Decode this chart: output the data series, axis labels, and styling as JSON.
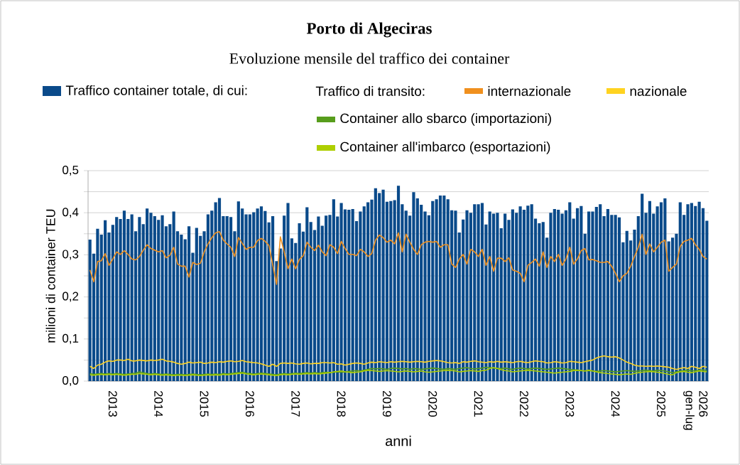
{
  "chart_data": {
    "type": "bar",
    "title": "Porto di Algeciras",
    "subtitle": "Evoluzione mensile del traffico dei container",
    "xlabel": "anni",
    "ylabel": "milioni di container TEU",
    "legend_title": "Traffico di transito:",
    "categories": [
      null,
      null,
      null,
      null,
      null,
      null,
      "2013",
      null,
      null,
      null,
      null,
      null,
      null,
      null,
      null,
      null,
      null,
      null,
      "2014",
      null,
      null,
      null,
      null,
      null,
      null,
      null,
      null,
      null,
      null,
      null,
      "2015",
      null,
      null,
      null,
      null,
      null,
      null,
      null,
      null,
      null,
      null,
      null,
      "2016",
      null,
      null,
      null,
      null,
      null,
      null,
      null,
      null,
      null,
      null,
      null,
      "2017",
      null,
      null,
      null,
      null,
      null,
      null,
      null,
      null,
      null,
      null,
      null,
      "2018",
      null,
      null,
      null,
      null,
      null,
      null,
      null,
      null,
      null,
      null,
      null,
      "2019",
      null,
      null,
      null,
      null,
      null,
      null,
      null,
      null,
      null,
      null,
      null,
      "2020",
      null,
      null,
      null,
      null,
      null,
      null,
      null,
      null,
      null,
      null,
      null,
      "2021",
      null,
      null,
      null,
      null,
      null,
      null,
      null,
      null,
      null,
      null,
      null,
      "2022",
      null,
      null,
      null,
      null,
      null,
      null,
      null,
      null,
      null,
      null,
      null,
      "2023",
      null,
      null,
      null,
      null,
      null,
      null,
      null,
      null,
      null,
      null,
      null,
      "2024",
      null,
      null,
      null,
      null,
      null,
      null,
      null,
      null,
      null,
      null,
      null,
      "2025",
      null,
      null,
      null,
      null,
      null,
      null,
      null,
      null,
      "2026 gen-lug",
      null,
      null,
      null
    ],
    "series": [
      {
        "name": "Traffico container totale, di cui:",
        "color": "#0a4a8a",
        "values": [
          0.336,
          0.303,
          0.362,
          0.348,
          0.382,
          0.353,
          0.371,
          0.39,
          0.385,
          0.405,
          0.385,
          0.396,
          0.356,
          0.39,
          0.373,
          0.41,
          0.4,
          0.392,
          0.383,
          0.394,
          0.368,
          0.373,
          0.403,
          0.356,
          0.348,
          0.337,
          0.368,
          0.305,
          0.364,
          0.345,
          0.356,
          0.396,
          0.405,
          0.425,
          0.435,
          0.392,
          0.392,
          0.39,
          0.356,
          0.427,
          0.41,
          0.396,
          0.396,
          0.401,
          0.41,
          0.415,
          0.404,
          0.377,
          0.392,
          0.285,
          0.315,
          0.393,
          0.423,
          0.339,
          0.328,
          0.375,
          0.355,
          0.413,
          0.378,
          0.359,
          0.391,
          0.369,
          0.393,
          0.395,
          0.432,
          0.391,
          0.423,
          0.408,
          0.407,
          0.409,
          0.38,
          0.403,
          0.415,
          0.425,
          0.431,
          0.458,
          0.447,
          0.455,
          0.426,
          0.428,
          0.43,
          0.464,
          0.42,
          0.405,
          0.393,
          0.449,
          0.434,
          0.419,
          0.403,
          0.394,
          0.428,
          0.432,
          0.441,
          0.441,
          0.432,
          0.406,
          0.405,
          0.353,
          0.384,
          0.406,
          0.4,
          0.42,
          0.42,
          0.423,
          0.372,
          0.403,
          0.398,
          0.4,
          0.363,
          0.398,
          0.383,
          0.408,
          0.4,
          0.415,
          0.407,
          0.417,
          0.42,
          0.386,
          0.375,
          0.378,
          0.341,
          0.4,
          0.409,
          0.407,
          0.398,
          0.406,
          0.425,
          0.386,
          0.411,
          0.416,
          0.35,
          0.403,
          0.403,
          0.414,
          0.42,
          0.392,
          0.409,
          0.395,
          0.395,
          0.389,
          0.33,
          0.357,
          0.334,
          0.36,
          0.392,
          0.445,
          0.4,
          0.428,
          0.398,
          0.415,
          0.425,
          0.434,
          0.332,
          0.341,
          0.35,
          0.425,
          0.395,
          0.42,
          0.423,
          0.416,
          0.426,
          0.411,
          0.381
        ]
      },
      {
        "name": "internazionale",
        "type": "line",
        "color": "#f0901e",
        "values": [
          0.264,
          0.236,
          0.284,
          0.286,
          0.303,
          0.275,
          0.29,
          0.307,
          0.301,
          0.31,
          0.301,
          0.29,
          0.288,
          0.296,
          0.311,
          0.324,
          0.315,
          0.311,
          0.307,
          0.31,
          0.293,
          0.299,
          0.318,
          0.278,
          0.273,
          0.273,
          0.247,
          0.282,
          0.277,
          0.28,
          0.307,
          0.326,
          0.341,
          0.352,
          0.355,
          0.335,
          0.326,
          0.318,
          0.296,
          0.341,
          0.327,
          0.313,
          0.318,
          0.318,
          0.334,
          0.339,
          0.332,
          0.322,
          0.276,
          0.23,
          0.343,
          0.307,
          0.267,
          0.29,
          0.267,
          0.289,
          0.298,
          0.33,
          0.318,
          0.31,
          0.323,
          0.307,
          0.298,
          0.324,
          0.318,
          0.303,
          0.332,
          0.315,
          0.301,
          0.301,
          0.298,
          0.313,
          0.307,
          0.296,
          0.303,
          0.335,
          0.347,
          0.341,
          0.33,
          0.335,
          0.326,
          0.352,
          0.307,
          0.349,
          0.33,
          0.313,
          0.301,
          0.324,
          0.33,
          0.332,
          0.33,
          0.332,
          0.318,
          0.324,
          0.324,
          0.278,
          0.27,
          0.29,
          0.301,
          0.278,
          0.313,
          0.307,
          0.296,
          0.313,
          0.275,
          0.296,
          0.261,
          0.292,
          0.292,
          0.284,
          0.293,
          0.264,
          0.261,
          0.256,
          0.236,
          0.275,
          0.282,
          0.29,
          0.273,
          0.307,
          0.27,
          0.296,
          0.284,
          0.301,
          0.275,
          0.29,
          0.318,
          0.278,
          0.29,
          0.31,
          0.315,
          0.288,
          0.289,
          0.286,
          0.282,
          0.282,
          0.284,
          0.273,
          0.256,
          0.236,
          0.25,
          0.256,
          0.273,
          0.296,
          0.318,
          0.349,
          0.301,
          0.326,
          0.307,
          0.318,
          0.33,
          0.335,
          0.261,
          0.27,
          0.278,
          0.32,
          0.332,
          0.335,
          0.339,
          0.324,
          0.313,
          0.296,
          0.29
        ]
      },
      {
        "name": "nazionale",
        "type": "line",
        "color": "#ffd320",
        "values": [
          0.035,
          0.03,
          0.038,
          0.04,
          0.045,
          0.048,
          0.047,
          0.05,
          0.05,
          0.049,
          0.052,
          0.048,
          0.048,
          0.05,
          0.049,
          0.048,
          0.05,
          0.049,
          0.05,
          0.052,
          0.048,
          0.047,
          0.045,
          0.042,
          0.04,
          0.042,
          0.045,
          0.043,
          0.044,
          0.045,
          0.042,
          0.043,
          0.045,
          0.044,
          0.046,
          0.045,
          0.047,
          0.048,
          0.046,
          0.047,
          0.049,
          0.046,
          0.045,
          0.044,
          0.043,
          0.041,
          0.038,
          0.035,
          0.04,
          0.035,
          0.042,
          0.043,
          0.042,
          0.043,
          0.041,
          0.04,
          0.042,
          0.043,
          0.041,
          0.042,
          0.042,
          0.044,
          0.044,
          0.043,
          0.044,
          0.04,
          0.041,
          0.038,
          0.04,
          0.042,
          0.043,
          0.042,
          0.04,
          0.043,
          0.045,
          0.044,
          0.046,
          0.045,
          0.044,
          0.046,
          0.045,
          0.046,
          0.047,
          0.046,
          0.045,
          0.046,
          0.047,
          0.046,
          0.045,
          0.047,
          0.048,
          0.049,
          0.048,
          0.046,
          0.044,
          0.043,
          0.044,
          0.042,
          0.046,
          0.045,
          0.047,
          0.048,
          0.046,
          0.045,
          0.044,
          0.046,
          0.045,
          0.047,
          0.045,
          0.046,
          0.045,
          0.044,
          0.046,
          0.047,
          0.045,
          0.044,
          0.046,
          0.048,
          0.047,
          0.046,
          0.043,
          0.044,
          0.046,
          0.045,
          0.043,
          0.044,
          0.047,
          0.046,
          0.045,
          0.044,
          0.046,
          0.048,
          0.05,
          0.055,
          0.058,
          0.06,
          0.058,
          0.057,
          0.058,
          0.055,
          0.05,
          0.045,
          0.042,
          0.038,
          0.036,
          0.036,
          0.035,
          0.036,
          0.035,
          0.036,
          0.035,
          0.034,
          0.033,
          0.03,
          0.028,
          0.03,
          0.032,
          0.03,
          0.035,
          0.033,
          0.03,
          0.035,
          0.033
        ]
      },
      {
        "name": "Container allo sbarco (importazioni)",
        "type": "line",
        "color": "#579d1c",
        "values": [
          0.018,
          0.016,
          0.017,
          0.018,
          0.017,
          0.018,
          0.017,
          0.018,
          0.017,
          0.016,
          0.017,
          0.018,
          0.019,
          0.022,
          0.02,
          0.018,
          0.017,
          0.018,
          0.017,
          0.016,
          0.017,
          0.016,
          0.015,
          0.016,
          0.016,
          0.015,
          0.016,
          0.017,
          0.016,
          0.015,
          0.016,
          0.017,
          0.016,
          0.017,
          0.016,
          0.018,
          0.017,
          0.018,
          0.019,
          0.02,
          0.021,
          0.019,
          0.018,
          0.017,
          0.018,
          0.019,
          0.018,
          0.017,
          0.016,
          0.015,
          0.017,
          0.018,
          0.017,
          0.018,
          0.019,
          0.018,
          0.019,
          0.02,
          0.019,
          0.02,
          0.019,
          0.02,
          0.021,
          0.02,
          0.021,
          0.022,
          0.021,
          0.022,
          0.023,
          0.024,
          0.025,
          0.024,
          0.026,
          0.028,
          0.03,
          0.029,
          0.03,
          0.029,
          0.028,
          0.03,
          0.031,
          0.03,
          0.029,
          0.03,
          0.028,
          0.03,
          0.029,
          0.028,
          0.029,
          0.03,
          0.031,
          0.03,
          0.029,
          0.028,
          0.03,
          0.029,
          0.028,
          0.03,
          0.031,
          0.032,
          0.03,
          0.029,
          0.03,
          0.031,
          0.033,
          0.032,
          0.031,
          0.03,
          0.03,
          0.031,
          0.029,
          0.028,
          0.03,
          0.031,
          0.03,
          0.029,
          0.03,
          0.031,
          0.03,
          0.029,
          0.028,
          0.029,
          0.03,
          0.031,
          0.03,
          0.029,
          0.028,
          0.027,
          0.026,
          0.025,
          0.024,
          0.025,
          0.024,
          0.023,
          0.024,
          0.025,
          0.024,
          0.023,
          0.022,
          0.023,
          0.024,
          0.025,
          0.024,
          0.023,
          0.024,
          0.025,
          0.026,
          0.025,
          0.024,
          0.026,
          0.025,
          0.024,
          0.022,
          0.02,
          0.022,
          0.024,
          0.025,
          0.026,
          0.024,
          0.025,
          0.026,
          0.027,
          0.025
        ]
      },
      {
        "name": "Container all'imbarco (esportazioni)",
        "type": "line",
        "color": "#aecf00",
        "values": [
          0.015,
          0.014,
          0.015,
          0.016,
          0.015,
          0.016,
          0.015,
          0.016,
          0.015,
          0.014,
          0.015,
          0.016,
          0.016,
          0.018,
          0.017,
          0.016,
          0.015,
          0.016,
          0.015,
          0.014,
          0.015,
          0.014,
          0.013,
          0.014,
          0.014,
          0.013,
          0.014,
          0.015,
          0.014,
          0.013,
          0.014,
          0.015,
          0.014,
          0.015,
          0.014,
          0.016,
          0.015,
          0.016,
          0.017,
          0.018,
          0.019,
          0.017,
          0.016,
          0.015,
          0.016,
          0.017,
          0.016,
          0.015,
          0.014,
          0.013,
          0.015,
          0.016,
          0.015,
          0.016,
          0.017,
          0.016,
          0.017,
          0.018,
          0.017,
          0.018,
          0.017,
          0.018,
          0.019,
          0.02,
          0.022,
          0.023,
          0.024,
          0.022,
          0.021,
          0.02,
          0.021,
          0.022,
          0.024,
          0.026,
          0.025,
          0.024,
          0.023,
          0.024,
          0.025,
          0.024,
          0.023,
          0.022,
          0.023,
          0.024,
          0.023,
          0.022,
          0.023,
          0.024,
          0.022,
          0.021,
          0.022,
          0.023,
          0.024,
          0.025,
          0.026,
          0.025,
          0.024,
          0.022,
          0.023,
          0.024,
          0.025,
          0.024,
          0.023,
          0.025,
          0.026,
          0.03,
          0.032,
          0.03,
          0.027,
          0.025,
          0.024,
          0.022,
          0.023,
          0.024,
          0.025,
          0.026,
          0.025,
          0.024,
          0.023,
          0.022,
          0.021,
          0.02,
          0.019,
          0.02,
          0.021,
          0.022,
          0.023,
          0.025,
          0.026,
          0.025,
          0.024,
          0.026,
          0.024,
          0.022,
          0.02,
          0.019,
          0.018,
          0.017,
          0.016,
          0.015,
          0.016,
          0.017,
          0.016,
          0.018,
          0.02,
          0.021,
          0.022,
          0.023,
          0.022,
          0.021,
          0.02,
          0.018,
          0.016,
          0.015,
          0.02,
          0.022,
          0.023,
          0.021,
          0.02,
          0.022,
          0.024,
          0.023,
          0.022
        ]
      }
    ],
    "ylim": [
      0,
      0.5
    ],
    "yticks": [
      {
        "value": 0,
        "label": "0,0"
      },
      {
        "value": 0.05,
        "label": null
      },
      {
        "value": 0.1,
        "label": "0,1"
      },
      {
        "value": 0.15,
        "label": null
      },
      {
        "value": 0.2,
        "label": "0,2"
      },
      {
        "value": 0.25,
        "label": null
      },
      {
        "value": 0.3,
        "label": "0,3"
      },
      {
        "value": 0.35,
        "label": null
      },
      {
        "value": 0.4,
        "label": "0,4"
      },
      {
        "value": 0.45,
        "label": null
      },
      {
        "value": 0.5,
        "label": "0,5"
      }
    ],
    "grid": "y",
    "legend": "top"
  }
}
